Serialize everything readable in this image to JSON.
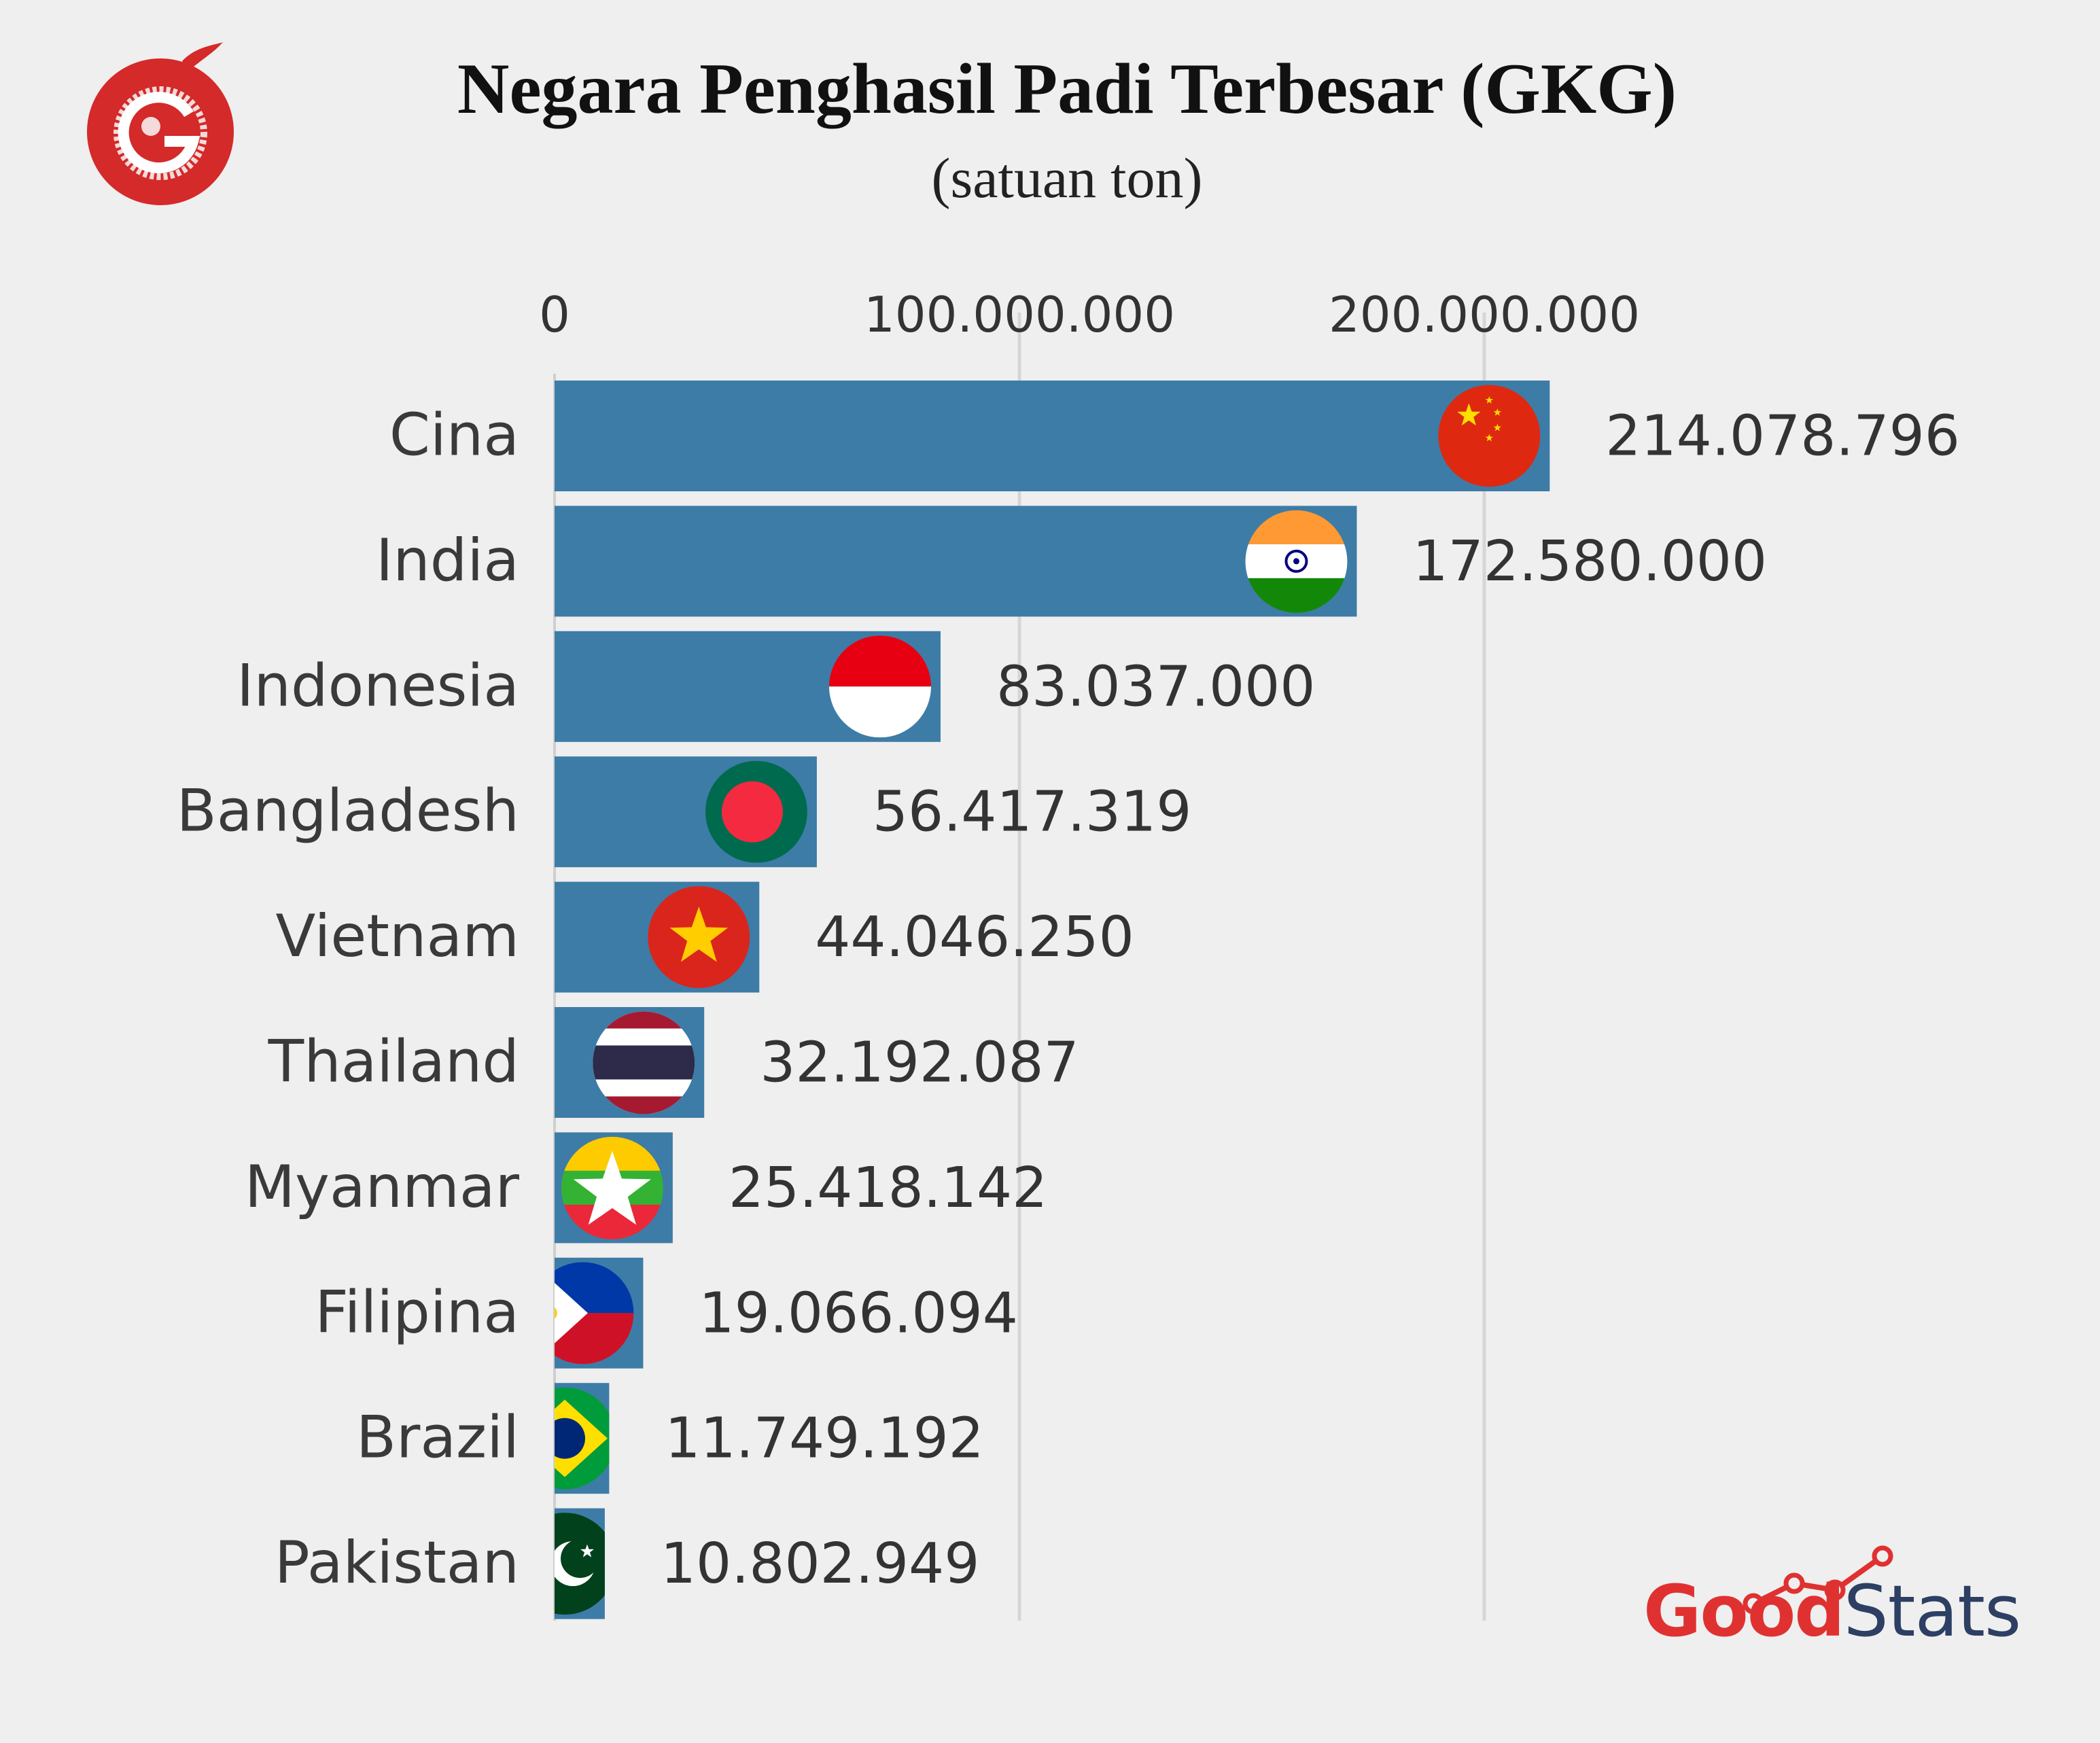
{
  "header": {
    "title": "Negara Penghasil Padi Terbesar (GKG)",
    "subtitle": "(satuan ton)"
  },
  "brand": {
    "logo_icon": "goodnews-g-logo",
    "logo_text_good": "Good",
    "logo_text_stats": "Stats"
  },
  "chart_data": {
    "type": "bar",
    "orientation": "horizontal",
    "title": "Negara Penghasil Padi Terbesar (GKG)",
    "subtitle": "(satuan ton)",
    "xlim": [
      0,
      250000000
    ],
    "x_ticks": [
      0,
      100000000,
      200000000
    ],
    "x_tick_labels": [
      "0",
      "100.000.000",
      "200.000.000"
    ],
    "grid": true,
    "bar_color": "#3d7ca6",
    "categories": [
      "Cina",
      "India",
      "Indonesia",
      "Bangladesh",
      "Vietnam",
      "Thailand",
      "Myanmar",
      "Filipina",
      "Brazil",
      "Pakistan"
    ],
    "values": [
      214078796,
      172580000,
      83037000,
      56417319,
      44046250,
      32192087,
      25418142,
      19066094,
      11749192,
      10802949
    ],
    "value_labels": [
      "214.078.796",
      "172.580.000",
      "83.037.000",
      "56.417.319",
      "44.046.250",
      "32.192.087",
      "25.418.142",
      "19.066.094",
      "11.749.192",
      "10.802.949"
    ],
    "flag_icons": [
      "china-flag-icon",
      "india-flag-icon",
      "indonesia-flag-icon",
      "bangladesh-flag-icon",
      "vietnam-flag-icon",
      "thailand-flag-icon",
      "myanmar-flag-icon",
      "philippines-flag-icon",
      "brazil-flag-icon",
      "pakistan-flag-icon"
    ]
  }
}
